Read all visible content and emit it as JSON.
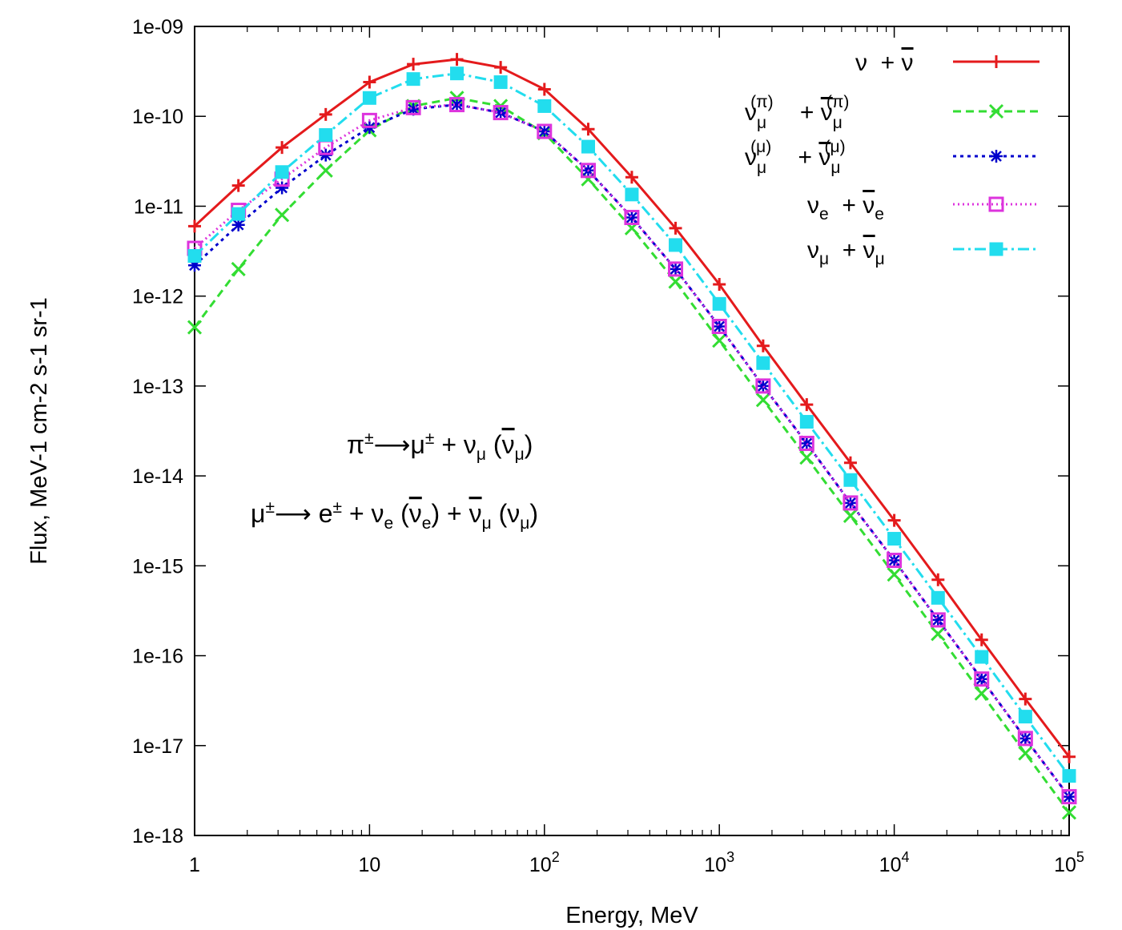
{
  "chart_data": {
    "type": "line",
    "title": "",
    "xlabel": "Energy, MeV",
    "ylabel": "Flux, MeV-1 cm-2 s-1 sr-1",
    "xscale": "log",
    "yscale": "log",
    "xlim": [
      1,
      100000
    ],
    "ylim": [
      1e-18,
      1e-09
    ],
    "x_ticks": [
      {
        "value": 1,
        "base": "1",
        "exp": ""
      },
      {
        "value": 10,
        "base": "10",
        "exp": ""
      },
      {
        "value": 100,
        "base": "10",
        "exp": "2"
      },
      {
        "value": 1000,
        "base": "10",
        "exp": "3"
      },
      {
        "value": 10000,
        "base": "10",
        "exp": "4"
      },
      {
        "value": 100000,
        "base": "10",
        "exp": "5"
      }
    ],
    "y_ticks": [
      "1e-09",
      "1e-10",
      "1e-11",
      "1e-12",
      "1e-13",
      "1e-14",
      "1e-15",
      "1e-16",
      "1e-17",
      "1e-18"
    ],
    "x": [
      1,
      1.78,
      3.16,
      5.62,
      10,
      17.8,
      31.6,
      56.2,
      100,
      178,
      316,
      562,
      1000,
      1780,
      3160,
      5620,
      10000,
      17800,
      31600,
      56200,
      100000
    ],
    "series": [
      {
        "name": "ν + ν̄ (total)",
        "color": "#e41a1c",
        "dash": "",
        "marker": "plus",
        "values": [
          6e-12,
          1.7e-11,
          4.5e-11,
          1.05e-10,
          2.4e-10,
          3.8e-10,
          4.3e-10,
          3.5e-10,
          2e-10,
          7.2e-11,
          2.1e-11,
          5.7e-12,
          1.35e-12,
          2.8e-13,
          6.2e-14,
          1.4e-14,
          3.2e-15,
          7e-16,
          1.5e-16,
          3.3e-17,
          7.5e-18
        ]
      },
      {
        "name": "νμ(π) + ν̄μ(π)",
        "color": "#33dd33",
        "dash": "10,6",
        "marker": "x",
        "values": [
          4.5e-13,
          2e-12,
          8e-12,
          2.5e-11,
          7e-11,
          1.3e-10,
          1.6e-10,
          1.3e-10,
          6.5e-11,
          2e-11,
          5.7e-12,
          1.45e-12,
          3.2e-13,
          7e-14,
          1.6e-14,
          3.6e-15,
          8e-16,
          1.75e-16,
          3.8e-17,
          8.2e-18,
          1.8e-18
        ]
      },
      {
        "name": "νμ(μ) + ν̄μ(μ)",
        "color": "#0000cc",
        "dash": "4,5",
        "marker": "star",
        "values": [
          2.2e-12,
          6.2e-12,
          1.6e-11,
          3.7e-11,
          7.5e-11,
          1.2e-10,
          1.35e-10,
          1.1e-10,
          6.8e-11,
          2.5e-11,
          7.5e-12,
          2e-12,
          4.6e-13,
          1e-13,
          2.3e-14,
          5e-15,
          1.15e-15,
          2.5e-16,
          5.5e-17,
          1.2e-17,
          2.7e-18
        ]
      },
      {
        "name": "νe + ν̄e",
        "color": "#dd33dd",
        "dash": "2,4",
        "marker": "square-open",
        "values": [
          3.4e-12,
          9e-12,
          2e-11,
          4.5e-11,
          9e-11,
          1.25e-10,
          1.35e-10,
          1.1e-10,
          6.8e-11,
          2.5e-11,
          7.5e-12,
          2e-12,
          4.6e-13,
          1e-13,
          2.3e-14,
          5e-15,
          1.15e-15,
          2.5e-16,
          5.5e-17,
          1.2e-17,
          2.7e-18
        ]
      },
      {
        "name": "νμ + ν̄μ",
        "color": "#22ddee",
        "dash": "14,5,3,5",
        "marker": "square-filled",
        "values": [
          2.8e-12,
          8.2e-12,
          2.4e-11,
          6.2e-11,
          1.6e-10,
          2.6e-10,
          3e-10,
          2.4e-10,
          1.3e-10,
          4.6e-11,
          1.35e-11,
          3.7e-12,
          8.2e-13,
          1.8e-13,
          4e-14,
          9e-15,
          2e-15,
          4.4e-16,
          9.7e-17,
          2.1e-17,
          4.6e-18
        ]
      }
    ],
    "legend": {
      "position": "top-right",
      "entries": [
        {
          "main": "ν",
          "sep": "  + ",
          "bar": "ν",
          "sub1": "",
          "sup1": "",
          "sub2": "",
          "sup2": ""
        },
        {
          "main": "ν",
          "sep": "    + ",
          "bar": "ν",
          "sub1": "μ",
          "sup1": "(π)",
          "sub2": "μ",
          "sup2": "(π)"
        },
        {
          "main": "ν",
          "sep": "    + ",
          "bar": "ν",
          "sub1": "μ",
          "sup1": "(μ)",
          "sub2": "μ",
          "sup2": "(μ)"
        },
        {
          "main": "ν",
          "sep": "  + ",
          "bar": "ν",
          "sub1": "e",
          "sup1": "",
          "sub2": "e",
          "sup2": ""
        },
        {
          "main": "ν",
          "sep": "  + ",
          "bar": "ν",
          "sub1": "μ",
          "sup1": "",
          "sub2": "μ",
          "sup2": ""
        }
      ]
    },
    "annotations": {
      "pion_decay": {
        "a": "π",
        "a_sup": "±",
        "arrow": "⟶",
        "b": "μ",
        "b_sup": "±",
        "plus": "  + ν",
        "nu_sub": "μ",
        "open": " (",
        "bar": "ν",
        "bar_sub": "μ",
        "close": ")"
      },
      "muon_decay": {
        "a": "μ",
        "a_sup": "±",
        "arrow": "⟶",
        "b": " e",
        "b_sup": "±",
        "p1": " + ν",
        "s1": "e",
        "o1": " (",
        "bar1": "ν",
        "bs1": "e",
        "c1": ")  + ",
        "bar2": "ν",
        "bs2": "μ",
        "o2": " (ν",
        "s2": "μ",
        "c2": ")"
      }
    }
  }
}
